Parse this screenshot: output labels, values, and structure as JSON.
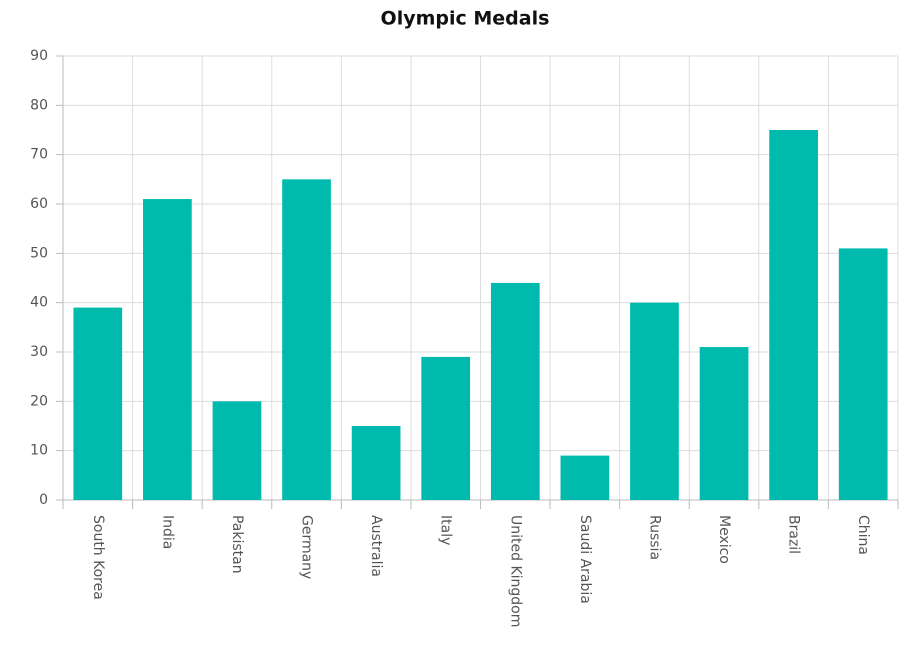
{
  "chart_data": {
    "type": "bar",
    "title": "Olympic Medals",
    "categories": [
      "South Korea",
      "India",
      "Pakistan",
      "Germany",
      "Australia",
      "Italy",
      "United Kingdom",
      "Saudi Arabia",
      "Russia",
      "Mexico",
      "Brazil",
      "China"
    ],
    "values": [
      39,
      61,
      20,
      65,
      15,
      29,
      44,
      9,
      40,
      31,
      75,
      51
    ],
    "color": "#00bbad",
    "ylim": [
      0,
      90
    ],
    "yticks": [
      0,
      10,
      20,
      30,
      40,
      50,
      60,
      70,
      80,
      90
    ],
    "grid": true
  }
}
